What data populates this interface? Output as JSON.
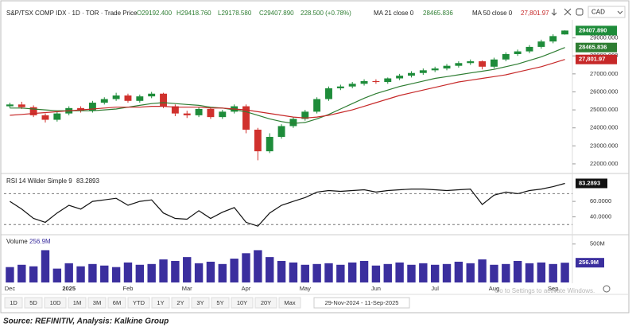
{
  "header": {
    "symbol": "S&P/TSX COMP IDX · 1D · TOR · Trade Price",
    "open": "O29192.400",
    "high": "H29418.760",
    "low": "L29178.580",
    "close": "C29407.890",
    "change": "228.500 (+0.78%)",
    "ma21_name": "MA 21 close 0",
    "ma50_name": "MA 50 close 0",
    "currency": "CAD"
  },
  "chart_data": [
    {
      "type": "candlestick",
      "up_color": "#1e8c3a",
      "down_color": "#d0312d",
      "categories": [
        "Dec",
        null,
        null,
        null,
        null,
        "2025",
        null,
        null,
        null,
        null,
        "Feb",
        null,
        null,
        null,
        null,
        "Mar",
        null,
        null,
        null,
        null,
        "Apr",
        null,
        null,
        null,
        null,
        "May",
        null,
        null,
        null,
        null,
        null,
        "Jun",
        null,
        null,
        null,
        null,
        "Jul",
        null,
        null,
        null,
        null,
        "Aug",
        null,
        null,
        null,
        null,
        "Sep",
        null
      ],
      "open": [
        25200,
        25300,
        25150,
        24700,
        24450,
        24800,
        25100,
        24950,
        25400,
        25600,
        25800,
        25500,
        25750,
        25900,
        25200,
        24800,
        24700,
        25050,
        24600,
        24900,
        25200,
        23900,
        22700,
        23500,
        24100,
        24500,
        24900,
        25600,
        26200,
        26300,
        26450,
        26600,
        26550,
        26750,
        26900,
        27050,
        27200,
        27300,
        27450,
        27600,
        27700,
        27400,
        27800,
        28100,
        28250,
        28500,
        28800,
        29192.4
      ],
      "high": [
        25400,
        25450,
        25250,
        24800,
        24900,
        25200,
        25200,
        25500,
        25700,
        25950,
        25900,
        25850,
        26000,
        25950,
        25300,
        24950,
        25150,
        25150,
        25000,
        25300,
        25300,
        24000,
        23700,
        24200,
        24600,
        25000,
        25700,
        26300,
        26400,
        26550,
        26700,
        26700,
        26800,
        27000,
        27150,
        27300,
        27400,
        27550,
        27700,
        27800,
        27750,
        27900,
        28200,
        28350,
        28600,
        28900,
        29200,
        29418.76
      ],
      "low": [
        25100,
        25050,
        24600,
        24300,
        24350,
        24700,
        24850,
        24850,
        25300,
        25500,
        25400,
        25400,
        25650,
        25100,
        24650,
        24550,
        24600,
        24500,
        24500,
        24800,
        23700,
        22200,
        22600,
        23400,
        24000,
        24400,
        24800,
        25500,
        26100,
        26200,
        26350,
        26450,
        26450,
        26650,
        26800,
        26950,
        27100,
        27200,
        27350,
        27500,
        27250,
        27300,
        27700,
        28000,
        28150,
        28400,
        28700,
        29178.58
      ],
      "close": [
        25300,
        25150,
        24700,
        24450,
        24800,
        25100,
        24950,
        25400,
        25600,
        25800,
        25500,
        25750,
        25900,
        25200,
        24800,
        24700,
        25050,
        24600,
        24900,
        25200,
        23900,
        22700,
        23500,
        24100,
        24500,
        24900,
        25600,
        26200,
        26300,
        26450,
        26600,
        26550,
        26750,
        26900,
        27050,
        27200,
        27300,
        27450,
        27600,
        27700,
        27400,
        27800,
        28100,
        28250,
        28500,
        28800,
        29100,
        29407.89
      ],
      "close_last_label": "29407.890",
      "series": [
        {
          "name": "MA 21",
          "color": "#2e7d32",
          "values": [
            25100,
            25100,
            25050,
            25000,
            24950,
            24950,
            24950,
            24950,
            25000,
            25050,
            25150,
            25250,
            25350,
            25400,
            25350,
            25300,
            25250,
            25150,
            25100,
            25000,
            24900,
            24700,
            24500,
            24350,
            24250,
            24300,
            24500,
            24750,
            25050,
            25350,
            25650,
            25900,
            26100,
            26300,
            26450,
            26600,
            26750,
            26850,
            26950,
            27050,
            27150,
            27250,
            27400,
            27550,
            27750,
            27950,
            28200,
            28465.836
          ]
        },
        {
          "name": "MA 50",
          "color": "#c62828",
          "last_label": "27,801.97",
          "values": [
            24700,
            24750,
            24800,
            24850,
            24900,
            24950,
            25000,
            25050,
            25100,
            25150,
            25150,
            25150,
            25200,
            25200,
            25150,
            25150,
            25150,
            25100,
            25100,
            25050,
            25000,
            24900,
            24800,
            24700,
            24600,
            24550,
            24600,
            24700,
            24850,
            25000,
            25200,
            25400,
            25600,
            25800,
            25950,
            26100,
            26250,
            26400,
            26550,
            26650,
            26750,
            26850,
            26950,
            27100,
            27250,
            27400,
            27600,
            27801.97
          ]
        }
      ],
      "ylim": [
        21600,
        30000
      ],
      "yticks": [
        {
          "value": 22000,
          "label": "22000.000"
        },
        {
          "value": 23000,
          "label": "23000.000"
        },
        {
          "value": 24000,
          "label": "24000.000"
        },
        {
          "value": 25000,
          "label": "25000.000"
        },
        {
          "value": 26000,
          "label": "26000.000"
        },
        {
          "value": 27000,
          "label": "27000.000"
        },
        {
          "value": 28000,
          "label": "28000.000"
        },
        {
          "value": 29000,
          "label": "29000.000"
        }
      ]
    },
    {
      "type": "line",
      "title": "RSI 14 Wilder Simple 9",
      "color": "#111111",
      "values": [
        60,
        50,
        38,
        33,
        45,
        55,
        50,
        60,
        62,
        64,
        55,
        60,
        62,
        45,
        38,
        37,
        48,
        38,
        46,
        52,
        33,
        28,
        45,
        55,
        60,
        65,
        72,
        74,
        73,
        74,
        75,
        72,
        74,
        75,
        76,
        76,
        75,
        74,
        75,
        76,
        56,
        68,
        72,
        70,
        74,
        76,
        79,
        83.2893
      ],
      "ylim": [
        20,
        92
      ],
      "yticks": [
        {
          "value": 60,
          "label": "60.0000"
        },
        {
          "value": 40,
          "label": "40.0000"
        }
      ],
      "levels": [
        70,
        30
      ]
    },
    {
      "type": "bar",
      "title": "Volume",
      "color": "#3b2f9e",
      "last_label": "256.9M",
      "values": [
        200,
        230,
        210,
        420,
        180,
        250,
        210,
        240,
        220,
        200,
        260,
        230,
        240,
        300,
        280,
        330,
        250,
        270,
        240,
        310,
        380,
        420,
        330,
        280,
        260,
        230,
        240,
        250,
        230,
        260,
        280,
        220,
        240,
        260,
        230,
        250,
        230,
        240,
        270,
        250,
        300,
        230,
        240,
        280,
        250,
        260,
        240,
        256.9
      ],
      "ylim": [
        0,
        590
      ],
      "yticks": [
        {
          "value": 500,
          "label": "500M"
        }
      ]
    }
  ],
  "toolbar": {
    "ranges": [
      "1D",
      "5D",
      "10D",
      "1M",
      "3M",
      "6M",
      "YTD",
      "1Y",
      "2Y",
      "3Y",
      "5Y",
      "10Y",
      "20Y",
      "Max"
    ],
    "date_range": "29-Nov-2024 - 11-Sep-2025"
  },
  "watermark": "Go to Settings to activate Windows.",
  "source": "Source: REFINITIV, Analysis: Kalkine Group"
}
